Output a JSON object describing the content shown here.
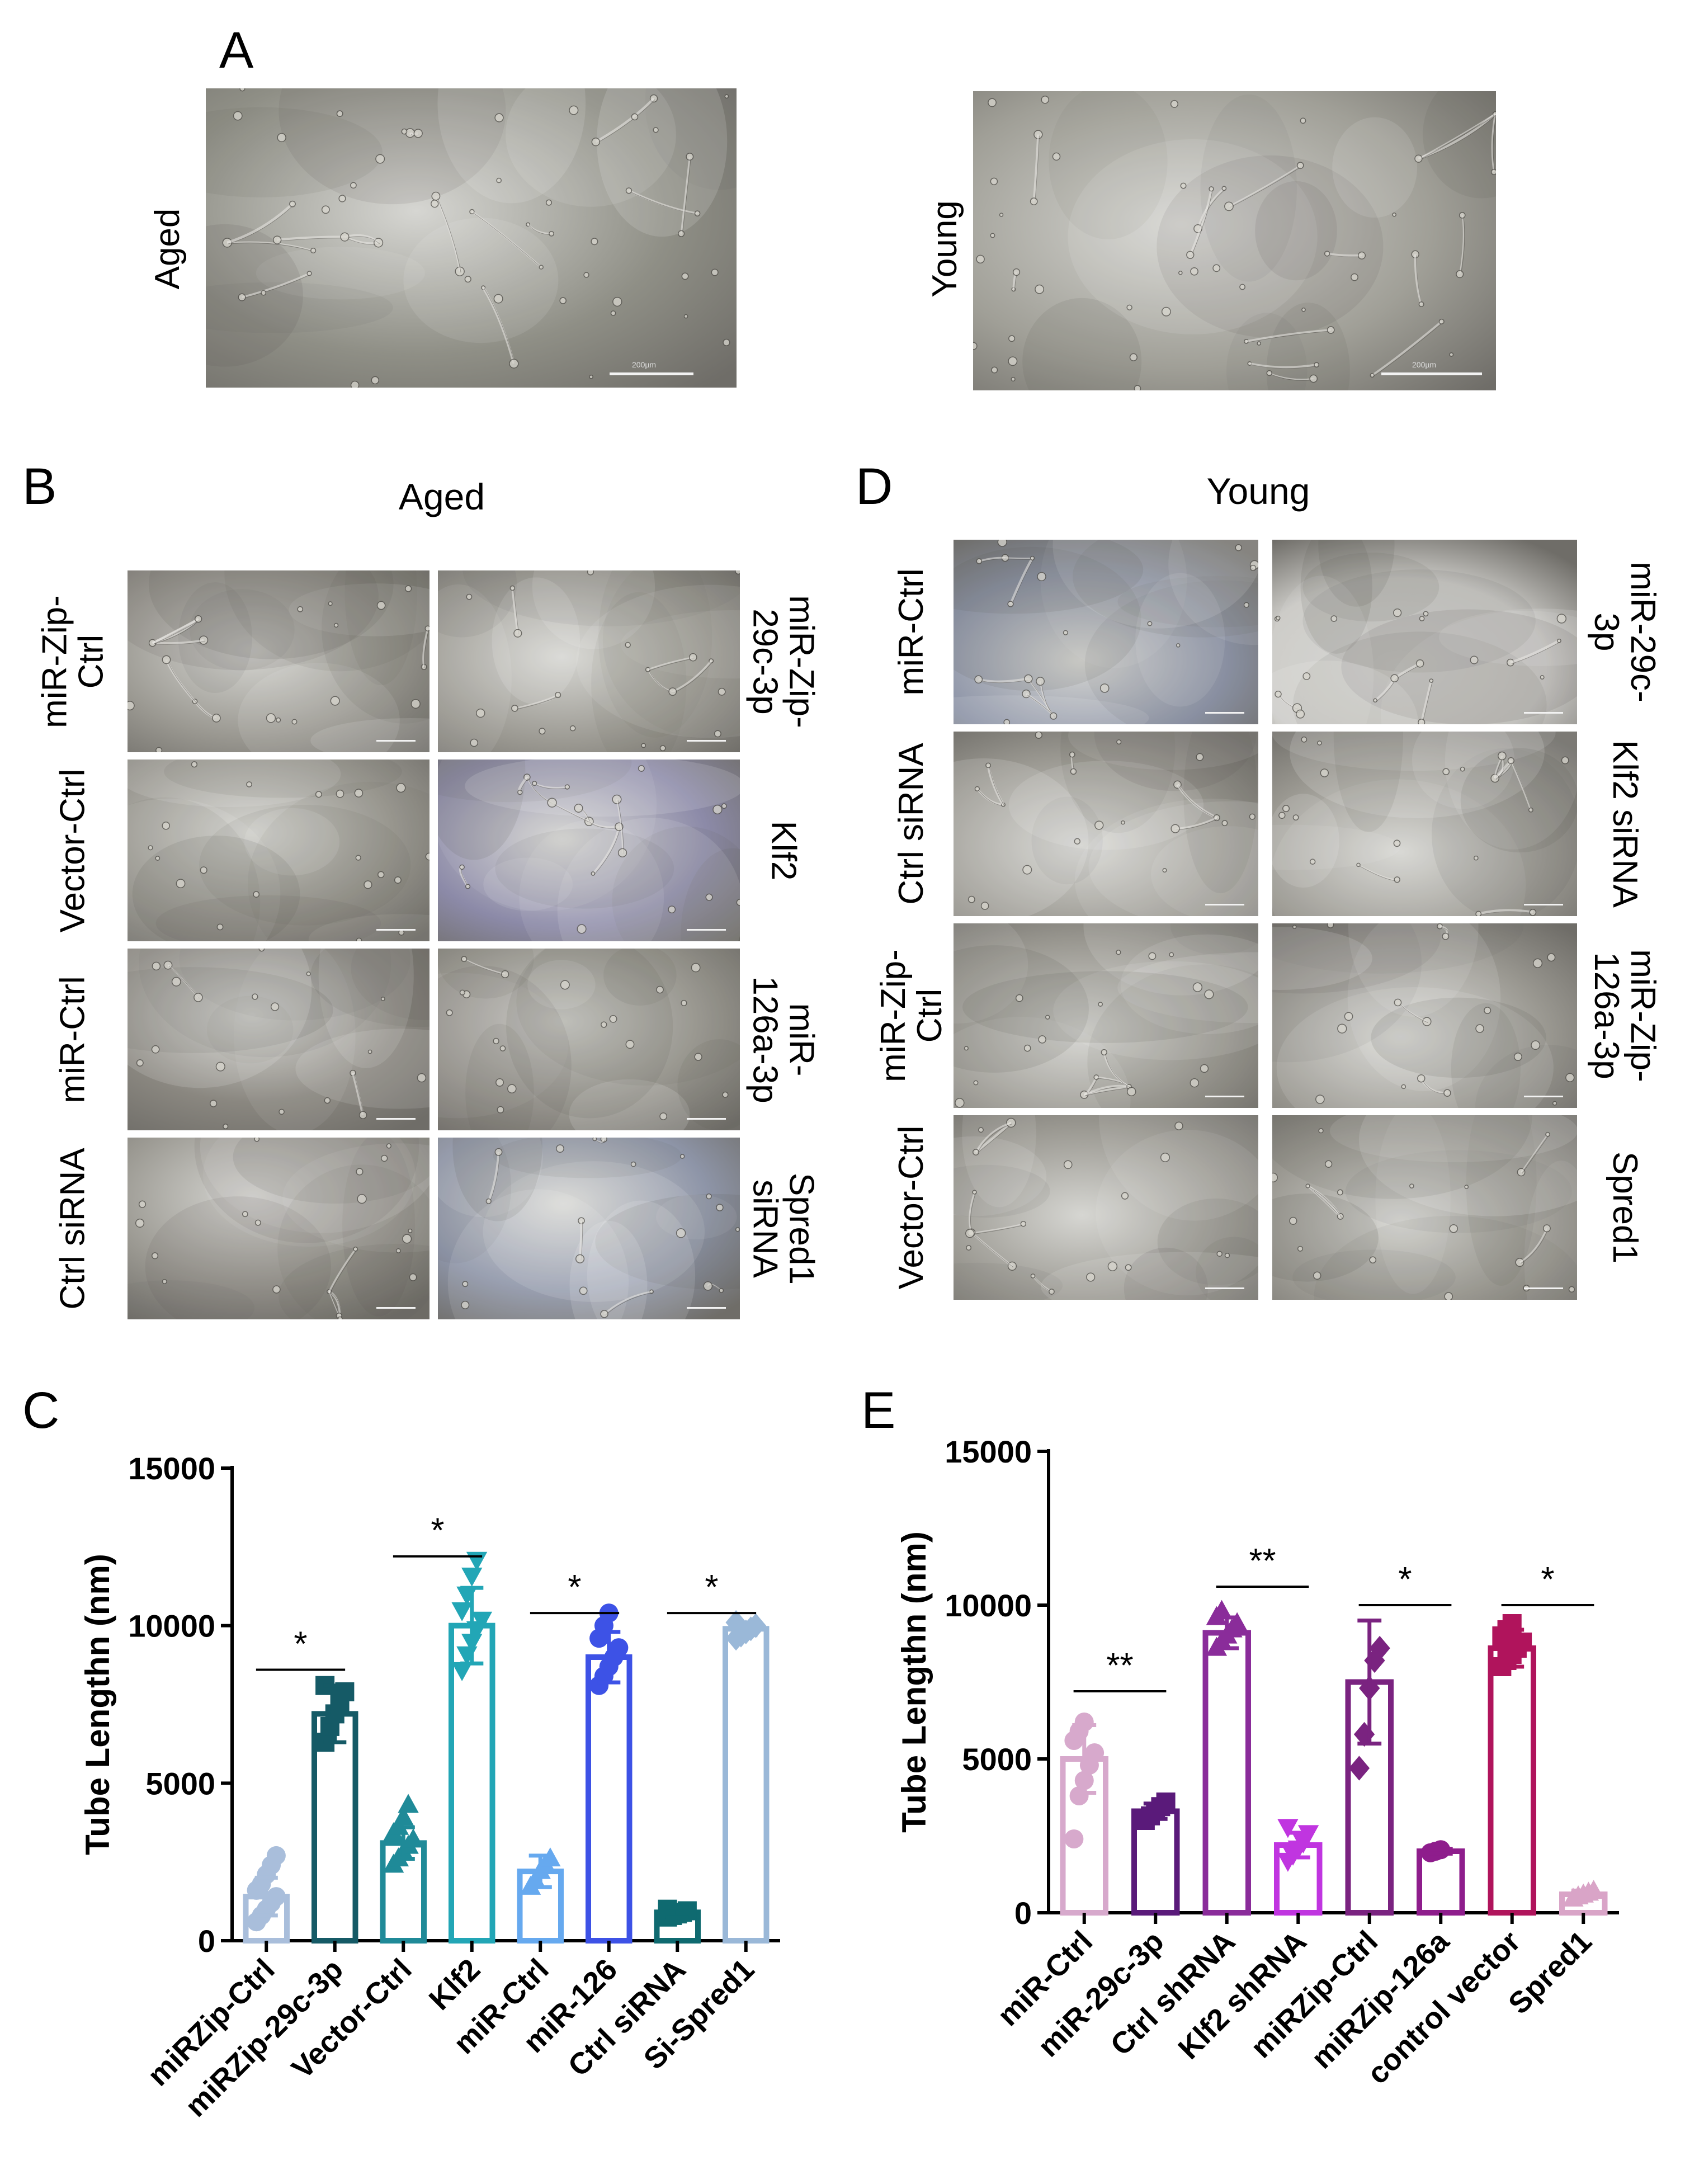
{
  "panels": {
    "A": {
      "letter": "A",
      "labels": {
        "left": "Aged",
        "right": "Young"
      },
      "scale": "200µm"
    },
    "B": {
      "letter": "B",
      "title": "Aged",
      "left_labels": [
        "miR-Zip-\nCtrl",
        "Vector-Ctrl",
        "miR-Ctrl",
        "Ctrl siRNA"
      ],
      "right_labels": [
        "miR-Zip-\n29c-3p",
        "Klf2",
        "miR-\n126a-3p",
        "Spred1\nsiRNA"
      ]
    },
    "D": {
      "letter": "D",
      "title": "Young",
      "left_labels": [
        "miR-Ctrl",
        "Ctrl siRNA",
        "miR-Zip-\nCtrl",
        "Vector-Ctrl"
      ],
      "right_labels": [
        "miR-29c-\n3p",
        "Klf2 siRNA",
        "miR-Zip-\n126a-3p",
        "Spred1"
      ]
    },
    "C": {
      "letter": "C"
    },
    "E": {
      "letter": "E"
    }
  },
  "image_tints": {
    "aged_a": "#8f8f86",
    "young_a": "#a09f97",
    "gray": "#9a9891",
    "purple": "#8c8aa8",
    "bluegray": "#8e95a8",
    "light": "#c9c8c4",
    "dark": "#8a8780"
  },
  "chart_data": [
    {
      "id": "C",
      "type": "bar",
      "ylabel": "Tube Lengthn (nm)",
      "ylim": [
        0,
        15000
      ],
      "yticks": [
        0,
        5000,
        10000,
        15000
      ],
      "categories": [
        "miRZip-Ctrl",
        "miRZip-29c-3p",
        "Vector-Ctrl",
        "Klf2",
        "miR-Ctrl",
        "miR-126",
        "Ctrl siRNA",
        "Si-Spred1"
      ],
      "values": [
        1400,
        7200,
        3100,
        10000,
        2200,
        9000,
        900,
        9900
      ],
      "errors": [
        600,
        900,
        500,
        1200,
        500,
        800,
        150,
        200
      ],
      "colors": [
        "#a9bedb",
        "#155a66",
        "#1f8a98",
        "#22a6b6",
        "#66a9ef",
        "#3d52e6",
        "#0f6a70",
        "#9ab8d8"
      ],
      "fills": [
        true,
        false,
        true,
        false,
        true,
        false,
        true,
        false
      ],
      "markers": [
        "circle",
        "square",
        "triangle",
        "triangle-down",
        "triangle",
        "circle",
        "square",
        "diamond"
      ],
      "points": [
        [
          600,
          800,
          1000,
          1200,
          1400,
          1600,
          1800,
          2100,
          2400,
          2700
        ],
        [
          6300,
          6800,
          7200,
          7500,
          7900,
          8100
        ],
        [
          2400,
          2600,
          2800,
          3000,
          3200,
          3400,
          3600,
          3900,
          4300
        ],
        [
          8600,
          9100,
          9500,
          9900,
          10200,
          10500,
          11000,
          11600,
          12100
        ],
        [
          1700,
          1900,
          2200,
          2400,
          2600
        ],
        [
          8100,
          8400,
          8700,
          9000,
          9300,
          9600,
          10000,
          10400
        ],
        [
          750,
          800,
          850,
          900,
          950,
          1000
        ],
        [
          9600,
          9700,
          9800,
          9900,
          10000,
          10100
        ]
      ],
      "significance": [
        {
          "pair": [
            0,
            1
          ],
          "label": "*",
          "y": 8600
        },
        {
          "pair": [
            2,
            3
          ],
          "label": "*",
          "y": 12200
        },
        {
          "pair": [
            4,
            5
          ],
          "label": "*",
          "y": 10400
        },
        {
          "pair": [
            6,
            7
          ],
          "label": "*",
          "y": 10400
        }
      ]
    },
    {
      "id": "E",
      "type": "bar",
      "ylabel": "Tube Lengthn (nm)",
      "ylim": [
        0,
        15000
      ],
      "yticks": [
        0,
        5000,
        10000,
        15000
      ],
      "categories": [
        "miR-Ctrl",
        "miR-29c-3p",
        "Ctrl shRNA",
        "Klf2 shRNA",
        "miRZip-Ctrl",
        "miRZip-126a",
        "control vector",
        "Spred1"
      ],
      "values": [
        5000,
        3300,
        9100,
        2200,
        7500,
        2000,
        8600,
        600
      ],
      "errors": [
        1100,
        250,
        500,
        400,
        2000,
        80,
        600,
        120
      ],
      "colors": [
        "#d7a9cc",
        "#5a1a7a",
        "#8a2c9a",
        "#c035e0",
        "#7a2380",
        "#8e1d8c",
        "#b0145c",
        "#d9a4c7"
      ],
      "fills": [
        true,
        false,
        true,
        false,
        true,
        false,
        true,
        false
      ],
      "markers": [
        "circle",
        "square",
        "triangle",
        "triangle-down",
        "diamond",
        "circle",
        "square",
        "triangle"
      ],
      "points": [
        [
          2400,
          3800,
          4300,
          4800,
          5200,
          5600,
          5900,
          6200
        ],
        [
          3000,
          3150,
          3300,
          3450,
          3600
        ],
        [
          8600,
          8800,
          9000,
          9200,
          9400,
          9600,
          9800
        ],
        [
          1700,
          1900,
          2100,
          2300,
          2600,
          2800
        ],
        [
          4700,
          5800,
          7300,
          8200,
          8600
        ],
        [
          1950,
          2000,
          2050
        ],
        [
          8000,
          8200,
          8400,
          8600,
          8800,
          9000,
          9200,
          9400
        ],
        [
          450,
          520,
          580,
          640,
          700
        ]
      ],
      "significance": [
        {
          "pair": [
            0,
            1
          ],
          "label": "**",
          "y": 7200
        },
        {
          "pair": [
            2,
            3
          ],
          "label": "**",
          "y": 10600
        },
        {
          "pair": [
            4,
            5
          ],
          "label": "*",
          "y": 10000
        },
        {
          "pair": [
            6,
            7
          ],
          "label": "*",
          "y": 10000
        }
      ]
    }
  ]
}
